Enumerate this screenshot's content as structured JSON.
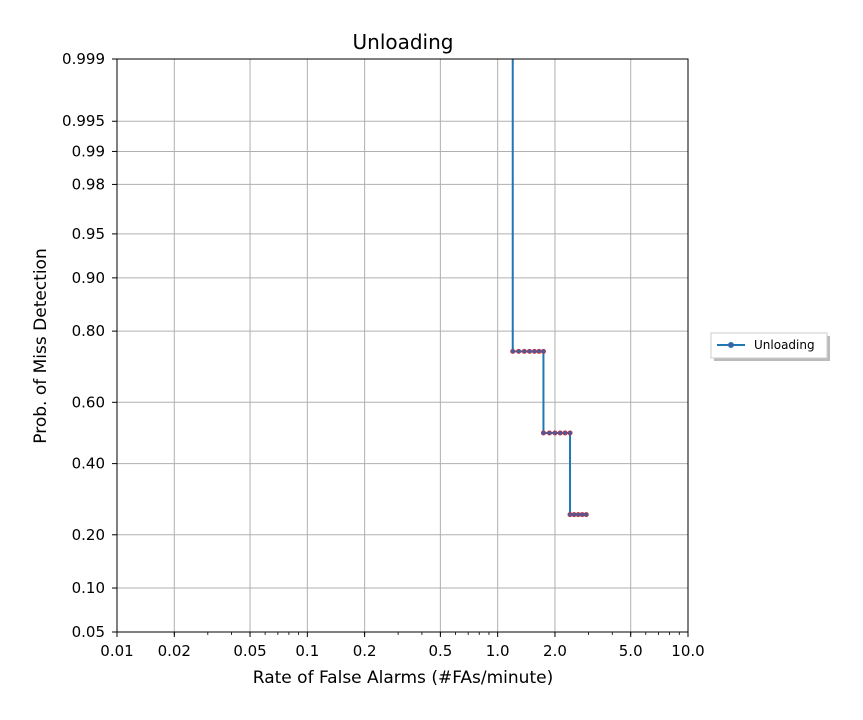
{
  "chart_data": {
    "type": "line",
    "title": "Unloading",
    "xlabel": "Rate of False Alarms (#FAs/minute)",
    "ylabel": "Prob. of Miss Detection",
    "x_scale": "log",
    "y_scale": "normal-deviate (probit)",
    "xlim": [
      0.01,
      10.0
    ],
    "ylim": [
      0.05,
      0.999
    ],
    "x_ticks": [
      0.01,
      0.02,
      0.05,
      0.1,
      0.2,
      0.5,
      1.0,
      2.0,
      5.0,
      10.0
    ],
    "x_tick_labels": [
      "0.01",
      "0.02",
      "0.05",
      "0.1",
      "0.2",
      "0.5",
      "1.0",
      "2.0",
      "5.0",
      "10.0"
    ],
    "y_ticks": [
      0.05,
      0.1,
      0.2,
      0.4,
      0.6,
      0.8,
      0.9,
      0.95,
      0.98,
      0.99,
      0.995,
      0.999
    ],
    "y_tick_labels": [
      "0.05",
      "0.10",
      "0.20",
      "0.40",
      "0.60",
      "0.80",
      "0.90",
      "0.95",
      "0.98",
      "0.99",
      "0.995",
      "0.999"
    ],
    "grid": true,
    "legend_position": "right, outside plot area",
    "series": [
      {
        "name": "Unloading",
        "color": "#1f77b4",
        "marker_color": "#4c5a9e",
        "marker_edge_color": "#d62728",
        "x": [
          1.2,
          1.2,
          1.29,
          1.38,
          1.47,
          1.56,
          1.65,
          1.74,
          1.74,
          1.87,
          2.0,
          2.13,
          2.26,
          2.4,
          2.4,
          2.52,
          2.65,
          2.78,
          2.92
        ],
        "y": [
          0.999,
          0.75,
          0.75,
          0.75,
          0.75,
          0.75,
          0.75,
          0.75,
          0.5,
          0.5,
          0.5,
          0.5,
          0.5,
          0.5,
          0.25,
          0.25,
          0.25,
          0.25,
          0.25
        ],
        "markers": [
          false,
          true,
          true,
          true,
          true,
          true,
          true,
          true,
          true,
          true,
          true,
          true,
          true,
          true,
          true,
          true,
          true,
          true,
          true
        ]
      }
    ]
  }
}
